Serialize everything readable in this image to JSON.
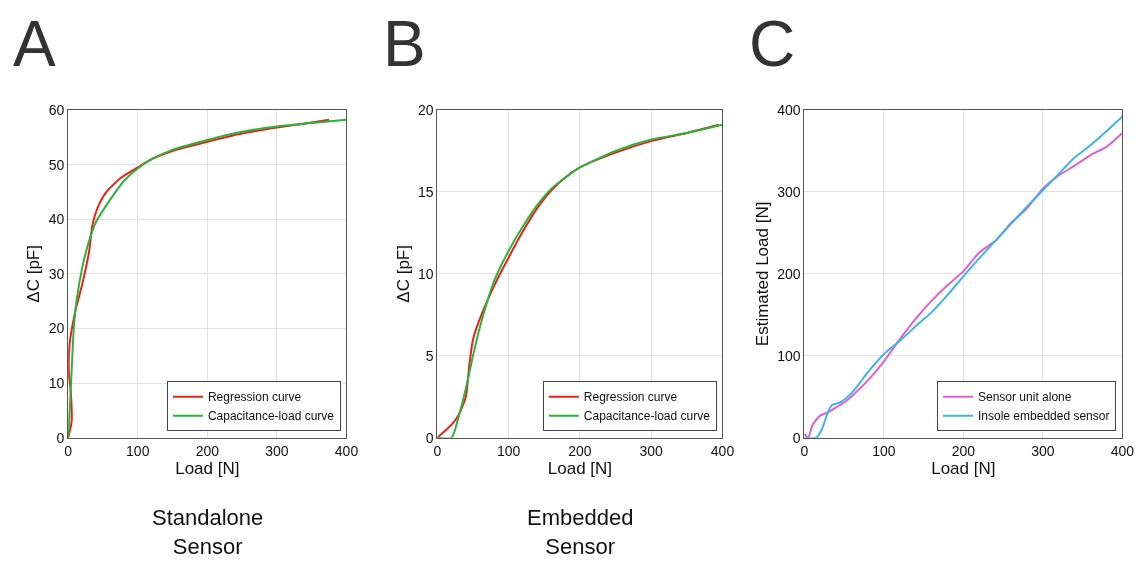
{
  "chart_data": [
    {
      "type": "line",
      "title": "A",
      "xlabel": "Load [N]",
      "ylabel": "ΔC [pF]",
      "xlim": [
        0,
        400
      ],
      "ylim": [
        0,
        60
      ],
      "xticks": [
        0,
        100,
        200,
        300,
        400
      ],
      "yticks": [
        0,
        10,
        20,
        30,
        40,
        50,
        60
      ],
      "grid": true,
      "legend": "bottom right",
      "annotations": [
        "Standalone Sensor"
      ],
      "series": [
        {
          "name": "Regression curve",
          "color": "#e8201c",
          "x": [
            0,
            5,
            4,
            1,
            2,
            10,
            20,
            30,
            35,
            42,
            55,
            75,
            100,
            120,
            150,
            200,
            250,
            300,
            350,
            375
          ],
          "values": [
            0,
            3,
            8,
            12,
            17,
            23,
            28,
            34,
            39,
            42,
            45,
            47.5,
            49.5,
            51,
            52.5,
            54.2,
            55.7,
            56.8,
            57.7,
            58.2
          ]
        },
        {
          "name": "Capacitance-load curve",
          "color": "#2bb33a",
          "x": [
            0,
            3,
            6,
            8,
            12,
            20,
            30,
            40,
            60,
            80,
            100,
            120,
            150,
            200,
            250,
            300,
            350,
            400
          ],
          "values": [
            0,
            7,
            15,
            20,
            25,
            31,
            36,
            39.5,
            43.5,
            47,
            49.3,
            51,
            52.7,
            54.5,
            56,
            57,
            57.6,
            58.2
          ]
        }
      ]
    },
    {
      "type": "line",
      "title": "B",
      "xlabel": "Load [N]",
      "ylabel": "ΔC [pF]",
      "xlim": [
        0,
        400
      ],
      "ylim": [
        0,
        20
      ],
      "xticks": [
        0,
        100,
        200,
        300,
        400
      ],
      "yticks": [
        0,
        5,
        10,
        15,
        20
      ],
      "grid": true,
      "legend": "bottom right",
      "annotations": [
        "Embedded Sensor"
      ],
      "series": [
        {
          "name": "Regression curve",
          "color": "#e8201c",
          "x": [
            0,
            10,
            20,
            30,
            40,
            45,
            50,
            60,
            80,
            100,
            120,
            140,
            160,
            180,
            200,
            250,
            300,
            350,
            395
          ],
          "values": [
            0,
            0.4,
            0.8,
            1.4,
            2.5,
            4.5,
            6,
            7.3,
            9.3,
            11,
            12.6,
            14,
            15.1,
            15.9,
            16.5,
            17.4,
            18.1,
            18.6,
            19.1
          ]
        },
        {
          "name": "Capacitance-load curve",
          "color": "#2bb33a",
          "x": [
            0,
            20,
            30,
            40,
            50,
            60,
            80,
            100,
            120,
            140,
            160,
            180,
            200,
            250,
            300,
            350,
            400
          ],
          "values": [
            0,
            0,
            1.3,
            3,
            5,
            6.8,
            9.6,
            11.4,
            12.9,
            14.2,
            15.2,
            15.9,
            16.5,
            17.5,
            18.2,
            18.6,
            19.1
          ]
        }
      ]
    },
    {
      "type": "line",
      "title": "C",
      "xlabel": "Load [N]",
      "ylabel": "Estimated Load [N]",
      "xlim": [
        0,
        400
      ],
      "ylim": [
        0,
        400
      ],
      "xticks": [
        0,
        100,
        200,
        300,
        400
      ],
      "yticks": [
        0,
        100,
        200,
        300,
        400
      ],
      "grid": true,
      "legend": "bottom right",
      "series": [
        {
          "name": "Sensor unit alone",
          "color": "#e060d0",
          "x": [
            0,
            5,
            10,
            20,
            30,
            40,
            50,
            60,
            80,
            100,
            120,
            140,
            160,
            180,
            200,
            220,
            240,
            260,
            280,
            300,
            320,
            340,
            360,
            380,
            400
          ],
          "values": [
            5,
            0,
            15,
            27,
            31,
            37,
            43,
            51,
            70,
            93,
            120,
            145,
            167,
            186,
            203,
            226,
            240,
            262,
            280,
            304,
            320,
            332,
            345,
            355,
            372
          ]
        },
        {
          "name": "Insole embedded sensor",
          "color": "#3fb3e8",
          "x": [
            0,
            15,
            22,
            30,
            35,
            45,
            60,
            80,
            100,
            120,
            140,
            160,
            180,
            200,
            220,
            240,
            260,
            280,
            300,
            320,
            340,
            360,
            380,
            400
          ],
          "values": [
            0,
            0,
            10,
            32,
            40,
            43,
            55,
            80,
            102,
            118,
            136,
            153,
            174,
            197,
            219,
            240,
            261,
            282,
            302,
            322,
            342,
            357,
            374,
            392
          ]
        }
      ]
    }
  ]
}
